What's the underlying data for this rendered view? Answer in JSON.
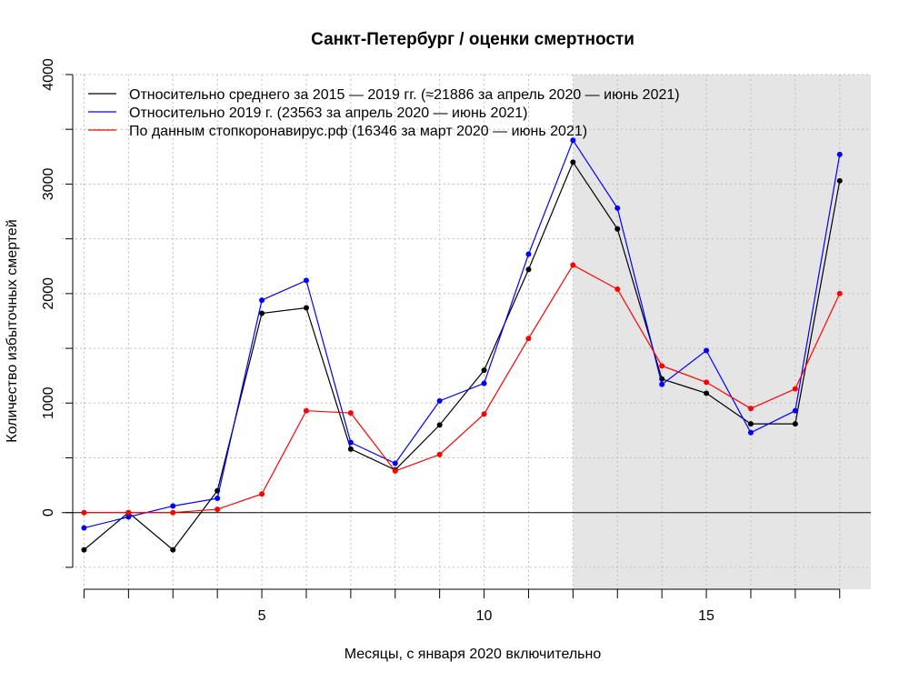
{
  "chart_data": {
    "type": "line",
    "title": "Санкт-Петербург / оценки смертности",
    "xlabel": "Месяцы, с января 2020 включительно",
    "ylabel": "Количество избыточных смертей",
    "x": [
      1,
      2,
      3,
      4,
      5,
      6,
      7,
      8,
      9,
      10,
      11,
      12,
      13,
      14,
      15,
      16,
      17,
      18
    ],
    "xlim": [
      0.5,
      18.7
    ],
    "ylim": [
      -700,
      4000
    ],
    "x_tick_labels": [
      "5",
      "10",
      "15"
    ],
    "y_tick_labels": [
      "0",
      "1000",
      "2000",
      "3000",
      "4000"
    ],
    "shaded_region": {
      "x_start": 12,
      "color": "#e5e5e5"
    },
    "grid": true,
    "legend_position": "top-left",
    "series": [
      {
        "name": "Относительно среднего за 2015 — 2019 гг. (≈21886 за апрель 2020 — июнь 2021)",
        "color": "#000000",
        "values": [
          -340,
          0,
          -340,
          200,
          1820,
          1870,
          580,
          390,
          800,
          1300,
          2220,
          3200,
          2590,
          1220,
          1090,
          810,
          810,
          3030
        ]
      },
      {
        "name": "Относительно 2019 г. (23563 за апрель 2020 — июнь 2021)",
        "color": "#0000ff",
        "values": [
          -140,
          -40,
          60,
          130,
          1940,
          2120,
          640,
          450,
          1020,
          1180,
          2360,
          3400,
          2780,
          1170,
          1480,
          730,
          930,
          3270
        ]
      },
      {
        "name": "По данным стопкоронавирус.рф (16346 за март 2020 — июнь 2021)",
        "color": "#ff0000",
        "values": [
          0,
          0,
          0,
          30,
          170,
          930,
          910,
          380,
          530,
          900,
          1590,
          2260,
          2040,
          1340,
          1190,
          950,
          1130,
          2000
        ]
      }
    ]
  }
}
